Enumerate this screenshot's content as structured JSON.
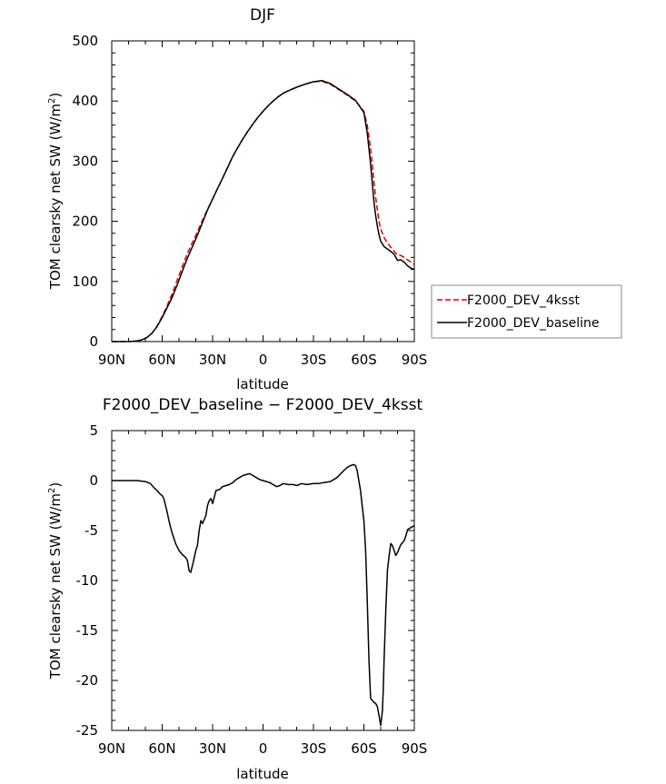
{
  "chart_data": [
    {
      "type": "line",
      "title": "DJF",
      "xlabel": "latitude",
      "ylabel_main": "TOM clearsky net SW (W/m",
      "ylabel_sup": "2",
      "ylabel_tail": ")",
      "xlim": [
        90,
        -90
      ],
      "ylim": [
        0,
        500
      ],
      "yticks": [
        0,
        100,
        200,
        300,
        400,
        500
      ],
      "xticks": [
        90,
        60,
        30,
        0,
        -30,
        -60,
        -90
      ],
      "xticklabels": [
        "90N",
        "60N",
        "30N",
        "0",
        "30S",
        "60S",
        "90S"
      ],
      "grid": false,
      "legend_position": "right",
      "series": [
        {
          "name": "F2000_DEV_4ksst",
          "color": "#e00000",
          "dash": "dashed",
          "x": [
            90,
            85,
            80,
            75,
            72,
            69,
            66,
            63,
            60,
            57,
            54,
            51,
            48,
            45,
            42,
            39,
            36,
            33,
            30,
            27,
            24,
            21,
            18,
            15,
            12,
            9,
            6,
            3,
            0,
            -3,
            -6,
            -9,
            -12,
            -15,
            -20,
            -25,
            -30,
            -35,
            -40,
            -45,
            -50,
            -55,
            -60,
            -62,
            -64,
            -65,
            -66,
            -67,
            -68,
            -69,
            -70,
            -72,
            -74,
            -76,
            -78,
            -80,
            -82,
            -84,
            -86,
            -88,
            -90
          ],
          "y": [
            0,
            0,
            0,
            1,
            3,
            7,
            14,
            26,
            42,
            60,
            80,
            103,
            125,
            147,
            165,
            183,
            202,
            220,
            237,
            255,
            272,
            290,
            308,
            323,
            337,
            350,
            362,
            373,
            383,
            392,
            400,
            407,
            413,
            417,
            423,
            428,
            432,
            433,
            428,
            419,
            410,
            400,
            383,
            360,
            320,
            295,
            265,
            240,
            220,
            200,
            187,
            173,
            164,
            157,
            150,
            144,
            143,
            140,
            136,
            132,
            128
          ]
        },
        {
          "name": "F2000_DEV_baseline",
          "color": "#000000",
          "dash": "solid",
          "x": [
            90,
            85,
            80,
            75,
            72,
            69,
            66,
            63,
            60,
            57,
            54,
            51,
            48,
            45,
            42,
            39,
            36,
            33,
            30,
            27,
            24,
            21,
            18,
            15,
            12,
            9,
            6,
            3,
            0,
            -3,
            -6,
            -9,
            -12,
            -15,
            -20,
            -25,
            -30,
            -35,
            -40,
            -45,
            -50,
            -55,
            -60,
            -62,
            -64,
            -65,
            -66,
            -67,
            -68,
            -69,
            -70,
            -72,
            -74,
            -76,
            -78,
            -80,
            -82,
            -84,
            -86,
            -88,
            -90
          ],
          "y": [
            0,
            0,
            0,
            1,
            3,
            7,
            14,
            25,
            40,
            57,
            74,
            95,
            117,
            139,
            158,
            177,
            198,
            219,
            237,
            255,
            272,
            290,
            308,
            323,
            337,
            350,
            362,
            373,
            383,
            392,
            400,
            407,
            413,
            417,
            423,
            428,
            432,
            434,
            429,
            420,
            411,
            401,
            381,
            347,
            295,
            262,
            232,
            210,
            192,
            178,
            167,
            158,
            154,
            150,
            145,
            135,
            136,
            132,
            126,
            122,
            120
          ]
        }
      ]
    },
    {
      "type": "line",
      "title": "F2000_DEV_baseline − F2000_DEV_4ksst",
      "xlabel": "latitude",
      "ylabel_main": "TOM clearsky net SW (W/m",
      "ylabel_sup": "2",
      "ylabel_tail": ")",
      "xlim": [
        90,
        -90
      ],
      "ylim": [
        -25,
        5
      ],
      "yticks": [
        -25,
        -20,
        -15,
        -10,
        -5,
        0,
        5
      ],
      "xticks": [
        90,
        60,
        30,
        0,
        -30,
        -60,
        -90
      ],
      "xticklabels": [
        "90N",
        "60N",
        "30N",
        "0",
        "30S",
        "60S",
        "90S"
      ],
      "grid": false,
      "series": [
        {
          "color": "#000000",
          "dash": "solid",
          "x": [
            90,
            80,
            75,
            70,
            67,
            65,
            63,
            61,
            60,
            59,
            58,
            57,
            56,
            55,
            54,
            52,
            50,
            48,
            46,
            45,
            44,
            43,
            42,
            41,
            40,
            39,
            38,
            37,
            36,
            35,
            34,
            33,
            32,
            31,
            30,
            28,
            26,
            24,
            22,
            20,
            18,
            16,
            14,
            12,
            10,
            8,
            6,
            4,
            2,
            0,
            -2,
            -4,
            -6,
            -8,
            -10,
            -12,
            -15,
            -18,
            -20,
            -23,
            -26,
            -30,
            -33,
            -36,
            -40,
            -44,
            -48,
            -50,
            -52,
            -54,
            -55,
            -56,
            -57,
            -58,
            -59,
            -60,
            -61,
            -62,
            -63,
            -64,
            -65,
            -66,
            -67,
            -68,
            -69,
            -70,
            -71,
            -71.5,
            -72,
            -73,
            -74,
            -75,
            -76,
            -77,
            -78,
            -79,
            -80,
            -81,
            -82,
            -83,
            -84,
            -85,
            -86,
            -88,
            -90
          ],
          "y": [
            0,
            0,
            0,
            -0.1,
            -0.3,
            -0.7,
            -1.0,
            -1.4,
            -1.5,
            -1.8,
            -2.5,
            -3.2,
            -4.0,
            -4.7,
            -5.3,
            -6.3,
            -7.0,
            -7.4,
            -7.7,
            -8.0,
            -9.0,
            -9.2,
            -8.5,
            -7.8,
            -7.0,
            -6.5,
            -5.0,
            -4.0,
            -4.3,
            -3.9,
            -3.5,
            -2.5,
            -2.0,
            -1.8,
            -2.3,
            -1.0,
            -0.9,
            -0.6,
            -0.5,
            -0.4,
            -0.2,
            0.1,
            0.3,
            0.5,
            0.6,
            0.7,
            0.5,
            0.3,
            0.1,
            0,
            -0.1,
            -0.2,
            -0.4,
            -0.6,
            -0.5,
            -0.3,
            -0.4,
            -0.4,
            -0.5,
            -0.3,
            -0.4,
            -0.3,
            -0.3,
            -0.2,
            -0.1,
            0.3,
            1.0,
            1.3,
            1.5,
            1.6,
            1.5,
            1.0,
            0,
            -1.0,
            -2.5,
            -4.0,
            -7.0,
            -12.0,
            -18.0,
            -21.8,
            -22.0,
            -22.2,
            -22.3,
            -22.6,
            -23.5,
            -24.5,
            -23.0,
            -21.0,
            -18.0,
            -13.0,
            -9.0,
            -7.5,
            -6.3,
            -6.5,
            -7.0,
            -7.5,
            -7.2,
            -6.8,
            -6.4,
            -6.2,
            -6.0,
            -5.5,
            -4.9,
            -4.7,
            -4.5
          ]
        }
      ]
    }
  ]
}
